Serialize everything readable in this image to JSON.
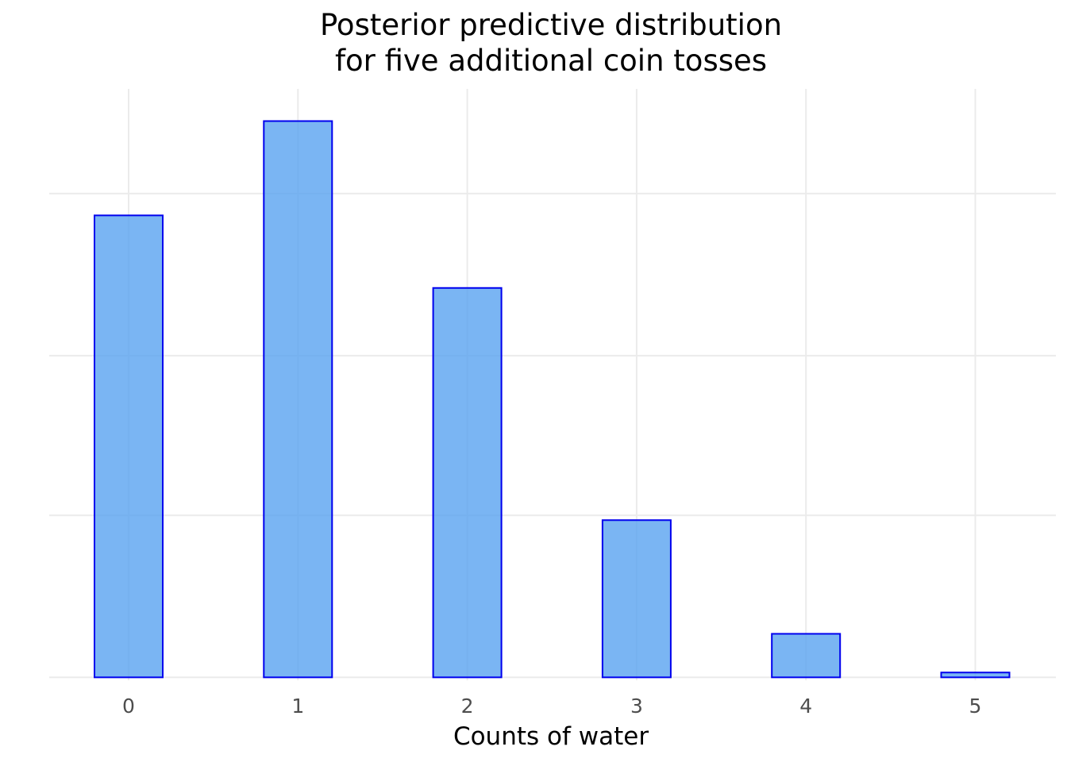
{
  "chart_data": {
    "type": "bar",
    "title": [
      "Posterior predictive distribution",
      "for five additional coin tosses"
    ],
    "xlabel": "Counts of water",
    "ylabel": "",
    "categories": [
      "0",
      "1",
      "2",
      "3",
      "4",
      "5"
    ],
    "values": [
      0.191,
      0.23,
      0.161,
      0.065,
      0.018,
      0.002
    ],
    "ylim": [
      -0.0012,
      0.2433
    ],
    "y_gridlines": [
      0,
      0.067,
      0.133,
      0.2
    ],
    "show_y_tick_labels": false,
    "grid": true,
    "legend": "none",
    "colors": {
      "bar_fill": "#59a2f0",
      "bar_fill_opacity": 0.8,
      "bar_stroke": "#0000ee",
      "grid": "#ebebeb",
      "tick_text": "#4d4d4d"
    }
  }
}
